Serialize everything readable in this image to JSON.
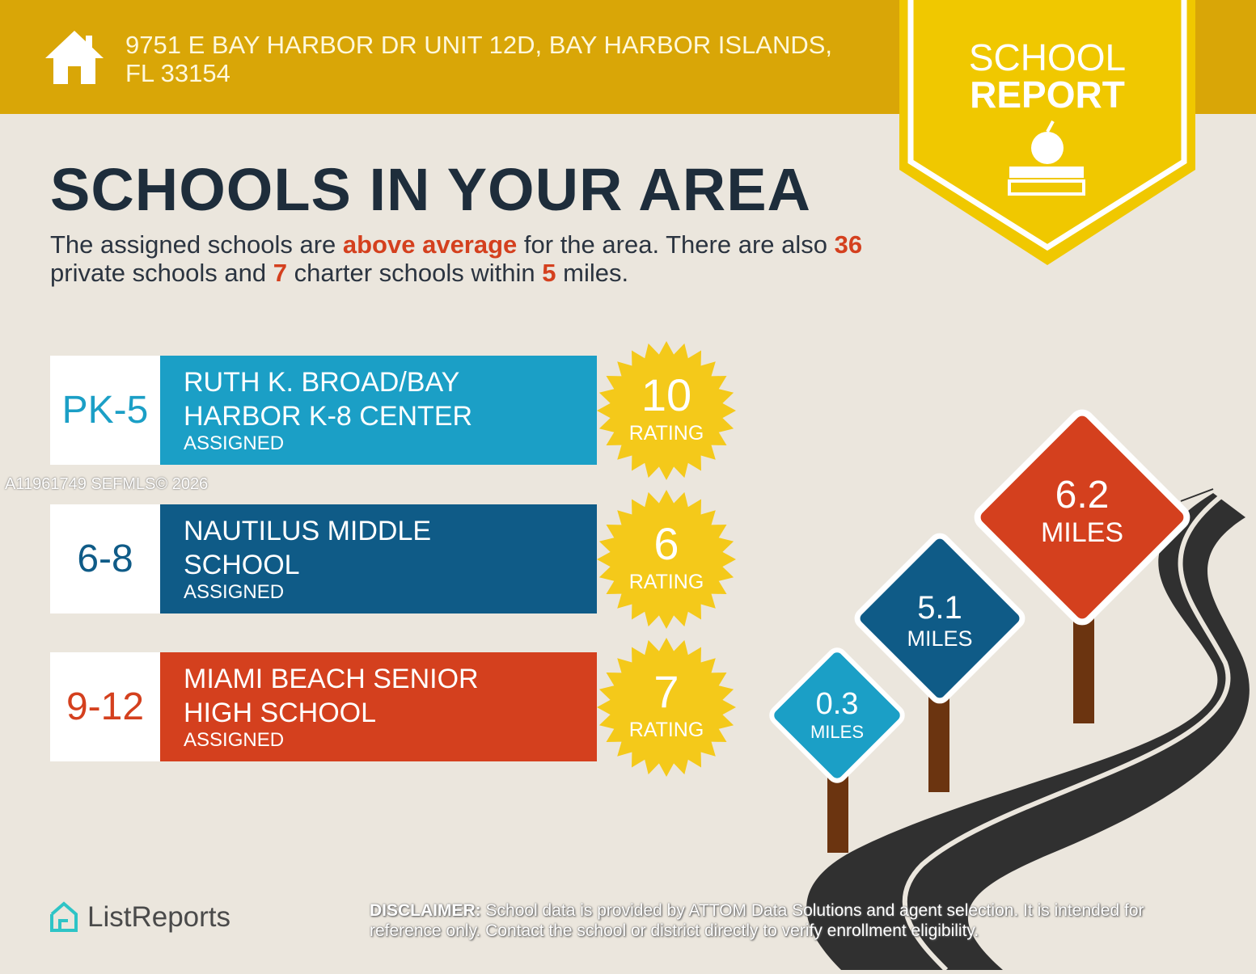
{
  "header": {
    "address_line1": "9751 E BAY HARBOR DR UNIT 12D, BAY HARBOR ISLANDS,",
    "address_line2": "FL 33154",
    "icon": "house-icon"
  },
  "badge": {
    "line1": "SCHOOL",
    "line2": "REPORT",
    "icon": "apple-on-books-icon"
  },
  "title": "SCHOOLS IN YOUR AREA",
  "summary": {
    "p1": "The assigned schools are ",
    "highlight": "above average",
    "p2": " for the area. There are also ",
    "private_count": "36",
    "p3": " private schools and ",
    "charter_count": "7",
    "p4": " charter schools within ",
    "radius": "5",
    "p5": " miles."
  },
  "schools": [
    {
      "grades": "PK-5",
      "name": "RUTH K. BROAD/BAY HARBOR K-8 CENTER",
      "status": "ASSIGNED",
      "rating": "10",
      "rating_label": "RATING",
      "color": "#1b9fc6"
    },
    {
      "grades": "6-8",
      "name": "NAUTILUS MIDDLE SCHOOL",
      "status": "ASSIGNED",
      "rating": "6",
      "rating_label": "RATING",
      "color": "#0f5b87"
    },
    {
      "grades": "9-12",
      "name": "MIAMI BEACH SENIOR HIGH SCHOOL",
      "status": "ASSIGNED",
      "rating": "7",
      "rating_label": "RATING",
      "color": "#d4401e"
    }
  ],
  "distances": [
    {
      "value": "0.3",
      "unit": "MILES",
      "color": "#1b9fc6"
    },
    {
      "value": "5.1",
      "unit": "MILES",
      "color": "#0f5b87"
    },
    {
      "value": "6.2",
      "unit": "MILES",
      "color": "#d4401e"
    }
  ],
  "watermark": "A11961749  SEFMLS© 2026",
  "footer": {
    "logo": "ListReports",
    "disclaimer_label": "DISCLAIMER:",
    "disclaimer": " School data is provided by ATTOM Data Solutions and agent selection. It is intended for reference only. Contact the school or district directly to verify enrollment eligibility."
  },
  "colors": {
    "header": "#d9a607",
    "badge": "#f0c800",
    "star": "#f4c91a",
    "title": "#1e2d3b",
    "accent": "#d4401e"
  }
}
